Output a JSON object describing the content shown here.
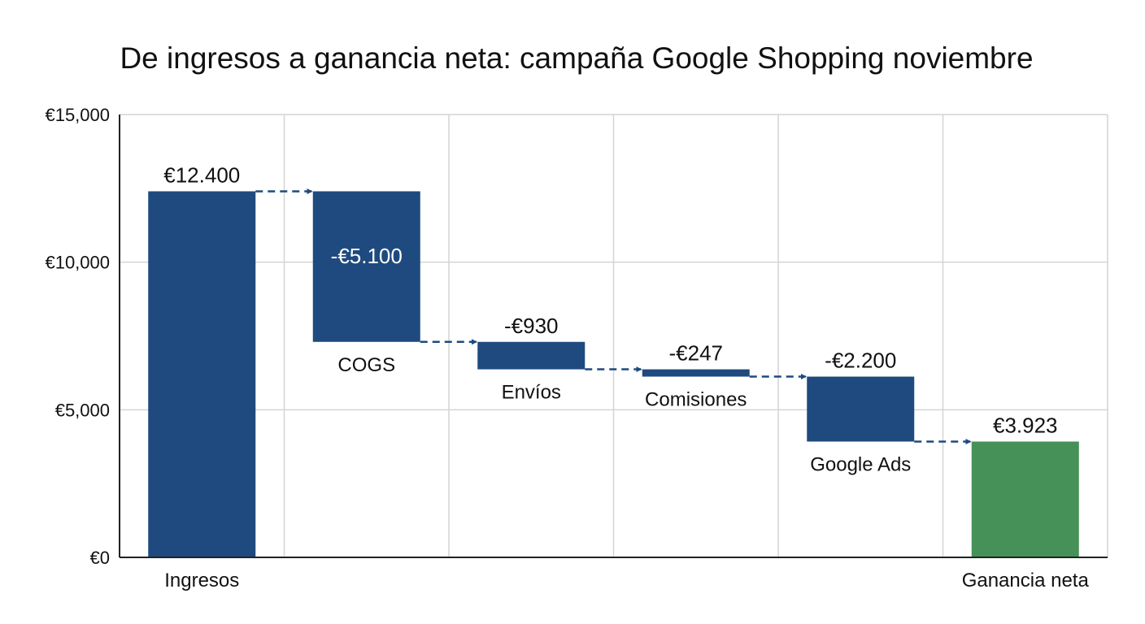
{
  "chart_data": {
    "type": "waterfall",
    "title": "De ingresos a ganancia neta: campaña Google Shopping noviembre",
    "xlabel": "",
    "ylabel": "",
    "ylim": [
      0,
      15000
    ],
    "yticks": [
      0,
      5000,
      10000,
      15000
    ],
    "ytick_labels": [
      "€0",
      "€5,000",
      "€10,000",
      "€15,000"
    ],
    "grid": true,
    "legend": "none",
    "categories": [
      "Ingresos",
      "COGS",
      "Envíos",
      "Comisiones",
      "Google Ads",
      "Ganancia neta"
    ],
    "steps": [
      {
        "category": "Ingresos",
        "kind": "total",
        "value": 12400,
        "label": "€12.400"
      },
      {
        "category": "COGS",
        "kind": "delta",
        "value": -5100,
        "label": "-€5.100"
      },
      {
        "category": "Envíos",
        "kind": "delta",
        "value": -930,
        "label": "-€930"
      },
      {
        "category": "Comisiones",
        "kind": "delta",
        "value": -247,
        "label": "-€247"
      },
      {
        "category": "Google Ads",
        "kind": "delta",
        "value": -2200,
        "label": "-€2.200"
      },
      {
        "category": "Ganancia neta",
        "kind": "total",
        "value": 3923,
        "label": "€3.923"
      }
    ],
    "colors": {
      "bar": "#1e4a7f",
      "total_end": "#459157",
      "grid": "#d4d4d4",
      "axis": "#222222",
      "connector": "#1e4a7f"
    }
  }
}
